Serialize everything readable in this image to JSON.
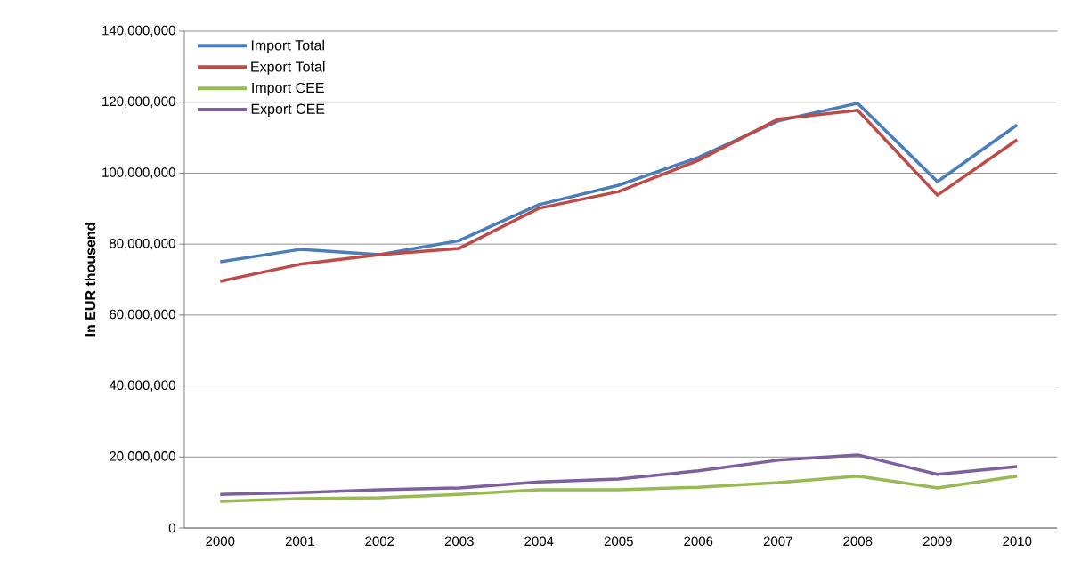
{
  "chart_data": {
    "type": "line",
    "ylabel": "In EUR thousend",
    "categories": [
      "2000",
      "2001",
      "2002",
      "2003",
      "2004",
      "2005",
      "2006",
      "2007",
      "2008",
      "2009",
      "2010"
    ],
    "series": [
      {
        "name": "Import Total",
        "color": "#4a7ebb",
        "values": [
          75000000,
          78500000,
          77000000,
          81000000,
          91100000,
          96600000,
          104400000,
          114700000,
          119700000,
          97600000,
          113600000
        ]
      },
      {
        "name": "Export Total",
        "color": "#be4b48",
        "values": [
          69500000,
          74300000,
          77000000,
          78800000,
          90100000,
          94800000,
          103600000,
          115200000,
          117700000,
          93800000,
          109400000
        ]
      },
      {
        "name": "Import CEE",
        "color": "#98b954",
        "values": [
          7500000,
          8300000,
          8500000,
          9500000,
          10800000,
          10800000,
          11500000,
          12800000,
          14600000,
          11300000,
          14600000
        ]
      },
      {
        "name": "Export CEE",
        "color": "#7d60a0",
        "values": [
          9500000,
          10000000,
          10800000,
          11300000,
          13000000,
          13800000,
          16100000,
          19100000,
          20600000,
          15100000,
          17300000
        ]
      }
    ],
    "ylim": [
      0,
      140000000
    ],
    "yticks": [
      {
        "value": 0,
        "label": "0"
      },
      {
        "value": 20000000,
        "label": "20,000,000"
      },
      {
        "value": 40000000,
        "label": "40,000,000"
      },
      {
        "value": 60000000,
        "label": "60,000,000"
      },
      {
        "value": 80000000,
        "label": "80,000,000"
      },
      {
        "value": 100000000,
        "label": "100,000,000"
      },
      {
        "value": 120000000,
        "label": "120,000,000"
      },
      {
        "value": 140000000,
        "label": "140,000,000"
      }
    ],
    "grid": "y",
    "legend": "top left",
    "marker": "none",
    "line_style": "solid"
  }
}
